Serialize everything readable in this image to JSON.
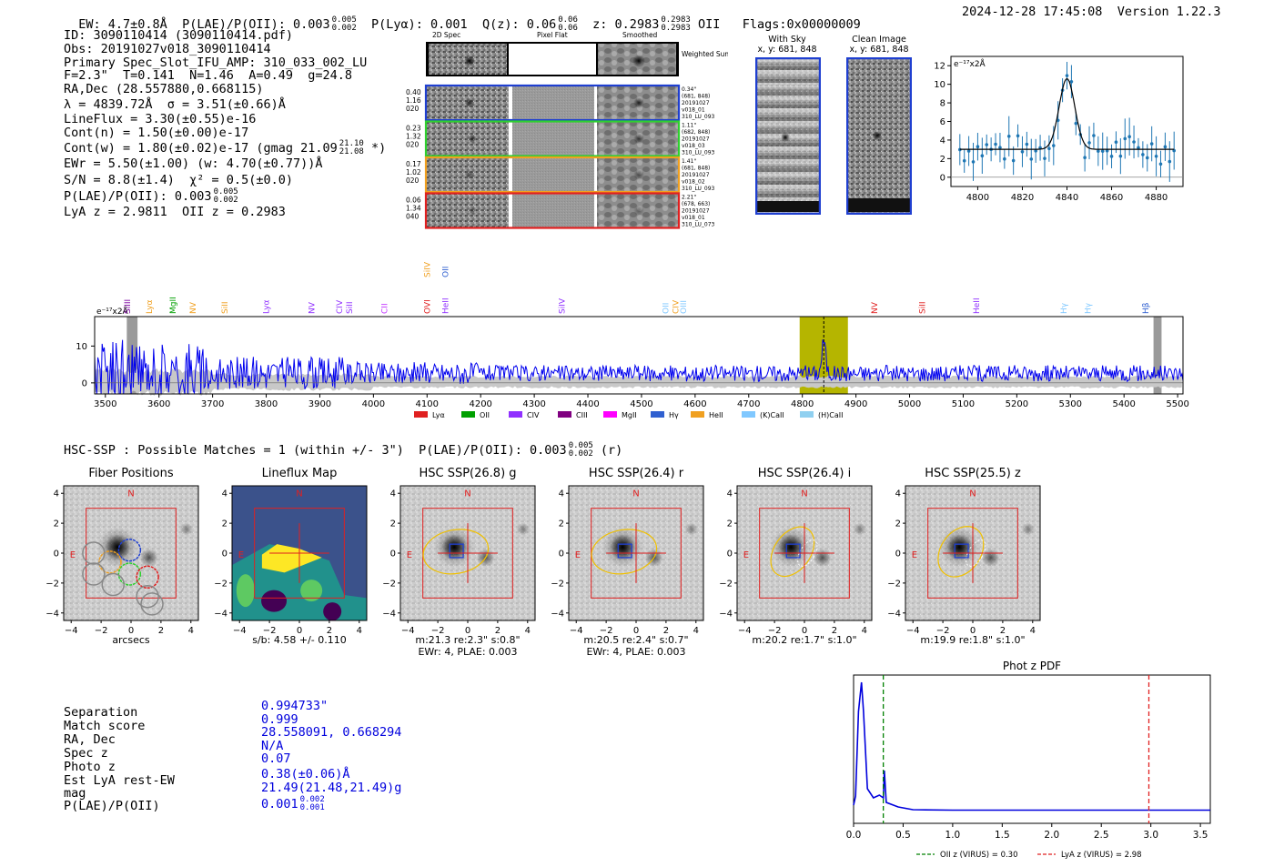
{
  "header": {
    "ew": "EW: 4.7±0.8Å",
    "plae_label": "P(LAE)/P(OII): 0.003",
    "plae_hi": "0.005",
    "plae_lo": "0.002",
    "plya": "P(Lyα): 0.001",
    "qz": "Q(z): 0.06",
    "qz_hi": "0.06",
    "qz_lo": "0.06",
    "z": "z: 0.2983",
    "z_hi": "0.2983",
    "z_lo": "0.2983",
    "z_line": "OII",
    "flags": "Flags:0x00000009",
    "datetime": "2024-12-28 17:45:08",
    "version": "Version 1.22.3"
  },
  "info": {
    "id": "ID: 3090110414 (3090110414.pdf)",
    "obs": "Obs: 20191027v018_3090110414",
    "primary": "Primary Spec_Slot_IFU_AMP: 310_033_002_LU",
    "fparams": "F=2.3\"  T=0.141  N=1.46  A=0.49  g=24.8",
    "radec": "RA,Dec (28.557880,0.668115)",
    "lambda": "λ = 4839.72Å  σ = 3.51(±0.66)Å",
    "lineflux": "LineFlux = 3.30(±0.55)e-16",
    "contn": "Cont(n) = 1.50(±0.00)e-17",
    "contw": "Cont(w) = 1.80(±0.02)e-17 (gmag 21.09",
    "contw_hi": "21.10",
    "contw_lo": "21.08",
    "contw_end": "*)",
    "ewr": "EWr = 5.50(±1.00) (w: 4.70(±0.77))Å",
    "sn": "S/N = 8.8(±1.4)  χ² = 0.5(±0.0)",
    "plae": "P(LAE)/P(OII): 0.003",
    "plae_hi": "0.005",
    "plae_lo": "0.002",
    "lyaz": "LyA z = 2.9811  OII z = 0.2983"
  },
  "cutout_panel": {
    "col_labels": [
      "2D Spec",
      "Pixel Flat",
      "Smoothed"
    ],
    "weighted_sum": "Weighted Sum",
    "rows": [
      {
        "left": [
          "0.40",
          "1.16",
          "020"
        ],
        "right": [
          "0.34\"",
          "(681, 848)",
          "20191027",
          "v018_01",
          "310_LU_093"
        ],
        "color": "#1f3fd0"
      },
      {
        "left": [
          "0.23",
          "1.32",
          "020"
        ],
        "right": [
          "1.11\"",
          "(682, 848)",
          "20191027",
          "v018_03",
          "310_LU_093"
        ],
        "color": "#2fd02f"
      },
      {
        "left": [
          "0.17",
          "1.02",
          "020"
        ],
        "right": [
          "1.41\"",
          "(681, 848)",
          "20191027",
          "v018_02",
          "310_LU_093"
        ],
        "color": "#f0a020"
      },
      {
        "left": [
          "0.06",
          "1.34",
          "040"
        ],
        "right": [
          "2.21\"",
          "(678, 663)",
          "20191027",
          "v018_01",
          "310_LU_073"
        ],
        "color": "#e02020"
      }
    ]
  },
  "sky_panels": {
    "with_sky": "With Sky",
    "clean": "Clean Image",
    "coords": "x, y: 681, 848"
  },
  "line_fit": {
    "ylabel": "e⁻¹⁷x2Å",
    "x_ticks": [
      "4800",
      "4820",
      "4840",
      "4860",
      "4880"
    ],
    "y_ticks": [
      "0",
      "2",
      "4",
      "6",
      "8",
      "10",
      "12"
    ],
    "x_range": [
      4788,
      4892
    ],
    "y_range": [
      -1,
      13
    ],
    "continuum": 3.0,
    "peak": 10.6,
    "center": 4840,
    "sigma": 3.5
  },
  "spectrum": {
    "ylabel": "e⁻¹⁷x2Å",
    "x_ticks": [
      "3500",
      "3600",
      "3700",
      "3800",
      "3900",
      "4000",
      "4100",
      "4200",
      "4300",
      "4400",
      "4500",
      "4600",
      "4700",
      "4800",
      "4900",
      "5000",
      "5100",
      "5200",
      "5300",
      "5400",
      "5500"
    ],
    "y_ticks": [
      "0",
      "10"
    ],
    "x_range": [
      3480,
      5510
    ],
    "y_range": [
      -3,
      18
    ],
    "highlight": [
      4795,
      4885
    ],
    "line_center": 4840,
    "gray_bands": [
      [
        3540,
        3560
      ],
      [
        5455,
        5470
      ]
    ],
    "line_labels": [
      {
        "t": "SiIII",
        "x": 3541,
        "c": "#7b00a0"
      },
      {
        "t": "Lyα",
        "x": 3582,
        "c": "#f0a020"
      },
      {
        "t": "MgII",
        "x": 3626,
        "c": "#00a000"
      },
      {
        "t": "NV",
        "x": 3663,
        "c": "#f0a020"
      },
      {
        "t": "SiII",
        "x": 3723,
        "c": "#f0a020"
      },
      {
        "t": "Lyα",
        "x": 3800,
        "c": "#9030ff"
      },
      {
        "t": "NV",
        "x": 3885,
        "c": "#9030ff"
      },
      {
        "t": "CIV",
        "x": 3937,
        "c": "#9030ff"
      },
      {
        "t": "SiII",
        "x": 3955,
        "c": "#9030ff"
      },
      {
        "t": "CII",
        "x": 4021,
        "c": "#c030ff"
      },
      {
        "t": "OVI",
        "x": 4100,
        "c": "#e02020"
      },
      {
        "t": "HeII",
        "x": 4134,
        "c": "#9030ff"
      },
      {
        "t": "SiIV",
        "x": 4352,
        "c": "#9030ff"
      },
      {
        "t": "OII",
        "x": 4545,
        "c": "#80c8ff"
      },
      {
        "t": "CIV",
        "x": 4564,
        "c": "#f0a020"
      },
      {
        "t": "OIII",
        "x": 4578,
        "c": "#80c8ff"
      },
      {
        "t": "NV",
        "x": 4935,
        "c": "#e02020"
      },
      {
        "t": "SiII",
        "x": 5024,
        "c": "#e02020"
      },
      {
        "t": "HeII",
        "x": 5125,
        "c": "#9030ff"
      },
      {
        "t": "Hγ",
        "x": 5288,
        "c": "#80c8ff"
      },
      {
        "t": "Hγ",
        "x": 5333,
        "c": "#80c8ff"
      },
      {
        "t": "Hβ",
        "x": 5440,
        "c": "#3060d0"
      }
    ],
    "upper_labels": [
      {
        "t": "SiIV",
        "x": 4100,
        "c": "#f0a020"
      },
      {
        "t": "OII",
        "x": 4134,
        "c": "#3060d0"
      }
    ],
    "legend": [
      {
        "t": "Lyα",
        "c": "#e02020"
      },
      {
        "t": "OII",
        "c": "#00a000"
      },
      {
        "t": "CIV",
        "c": "#9030ff"
      },
      {
        "t": "CIII",
        "c": "#800080"
      },
      {
        "t": "MgII",
        "c": "#ff00ff"
      },
      {
        "t": "Hγ",
        "c": "#3060d0"
      },
      {
        "t": "HeII",
        "c": "#f0a020"
      },
      {
        "t": "(K)CaII",
        "c": "#80c8ff"
      },
      {
        "t": "(H)CaII",
        "c": "#90d0f0"
      }
    ]
  },
  "hsc": {
    "summary": "HSC-SSP : Possible Matches = 1 (within +/- 3\")  P(LAE)/P(OII): 0.003",
    "summary_hi": "0.005",
    "summary_lo": "0.002",
    "summary_end": "(r)",
    "panels": [
      {
        "title": "Fiber Positions",
        "caption1": "arcsecs",
        "caption2": ""
      },
      {
        "title": "Lineflux Map",
        "caption1": "s/b: 4.58 +/- 0.110",
        "caption2": ""
      },
      {
        "title": "HSC SSP(26.8) g",
        "caption1": "m:21.3  re:2.3\"  s:0.8\"",
        "caption2": "EWr: 4, PLAE: 0.003"
      },
      {
        "title": "HSC SSP(26.4) r",
        "caption1": "m:20.5  re:2.4\"  s:0.7\"",
        "caption2": "EWr: 4, PLAE: 0.003"
      },
      {
        "title": "HSC SSP(26.4) i",
        "caption1": "m:20.2  re:1.7\"  s:1.0\"",
        "caption2": ""
      },
      {
        "title": "HSC SSP(25.5) z",
        "caption1": "m:19.9  re:1.8\"  s:1.0\"",
        "caption2": ""
      }
    ],
    "ticks": [
      "−4",
      "−2",
      "0",
      "2",
      "4"
    ],
    "north": "N",
    "east": "E"
  },
  "match": {
    "labels": [
      "Separation",
      "Match score",
      "RA, Dec",
      "Spec z",
      "Photo z",
      "Est LyA rest-EW",
      "mag",
      "P(LAE)/P(OII)"
    ],
    "values": [
      "0.994733\"",
      "0.999",
      "28.558091, 0.668294",
      "N/A",
      "0.07",
      "0.38(±0.06)Å",
      "21.49(21.48,21.49)g",
      "0.001"
    ],
    "plae_hi": "0.002",
    "plae_lo": "0.001"
  },
  "photoz": {
    "title": "Phot z PDF",
    "x_ticks": [
      "0.0",
      "0.5",
      "1.0",
      "1.5",
      "2.0",
      "2.5",
      "3.0",
      "3.5"
    ],
    "x_range": [
      0,
      3.6
    ],
    "oii_z": 0.3,
    "lya_z": 2.98,
    "legend_oii": "OII z (VIRUS) = 0.30",
    "legend_lya": "LyA z (VIRUS) = 2.98",
    "colors": {
      "oii": "#008000",
      "lya": "#e02020",
      "pdf": "#0000dd"
    }
  }
}
